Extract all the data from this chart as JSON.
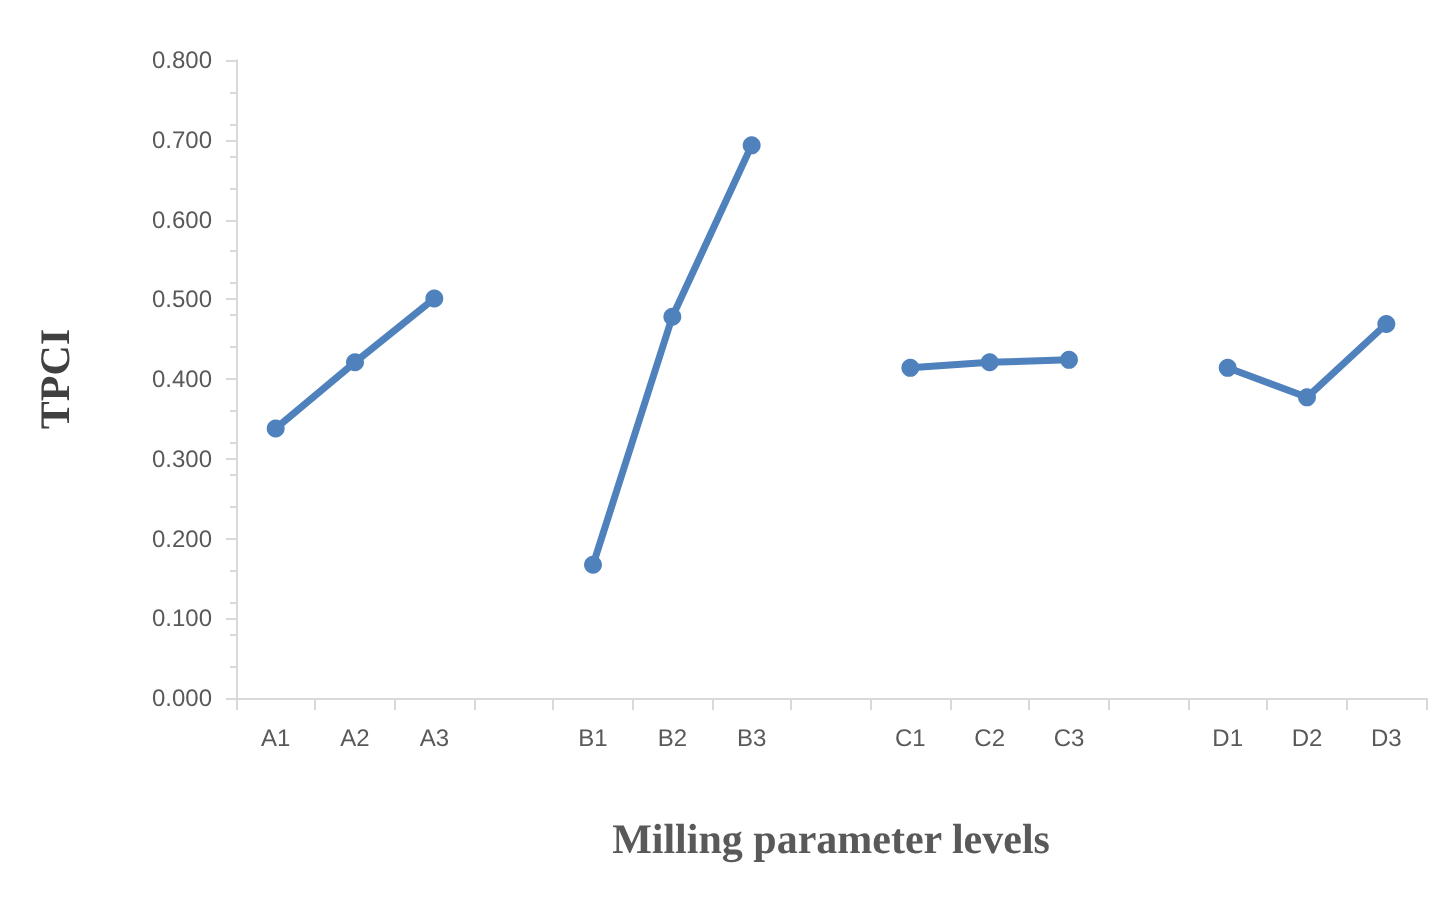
{
  "chart_data": {
    "type": "line",
    "xlabel": "Milling parameter levels",
    "ylabel": "TPCI",
    "categories": [
      "A1",
      "A2",
      "A3",
      null,
      "B1",
      "B2",
      "B3",
      null,
      "C1",
      "C2",
      "C3",
      null,
      "D1",
      "D2",
      "D3"
    ],
    "series": [
      {
        "color": "#4f81bd",
        "values": [
          0.338,
          0.421,
          0.501,
          null,
          0.167,
          0.478,
          0.693,
          null,
          0.414,
          0.421,
          0.424,
          null,
          0.414,
          0.377,
          0.469
        ]
      }
    ],
    "ylim": [
      0,
      0.8
    ],
    "yticks": [
      {
        "value": 0,
        "label": "0.000"
      },
      {
        "value": 0.1,
        "label": "0.100"
      },
      {
        "value": 0.2,
        "label": "0.200"
      },
      {
        "value": 0.3,
        "label": "0.300"
      },
      {
        "value": 0.4,
        "label": "0.400"
      },
      {
        "value": 0.5,
        "label": "0.500"
      },
      {
        "value": 0.6,
        "label": "0.600"
      },
      {
        "value": 0.7,
        "label": "0.700"
      },
      {
        "value": 0.8,
        "label": "0.800"
      }
    ],
    "grid": false,
    "marker": "circle",
    "line_style": "solid"
  }
}
